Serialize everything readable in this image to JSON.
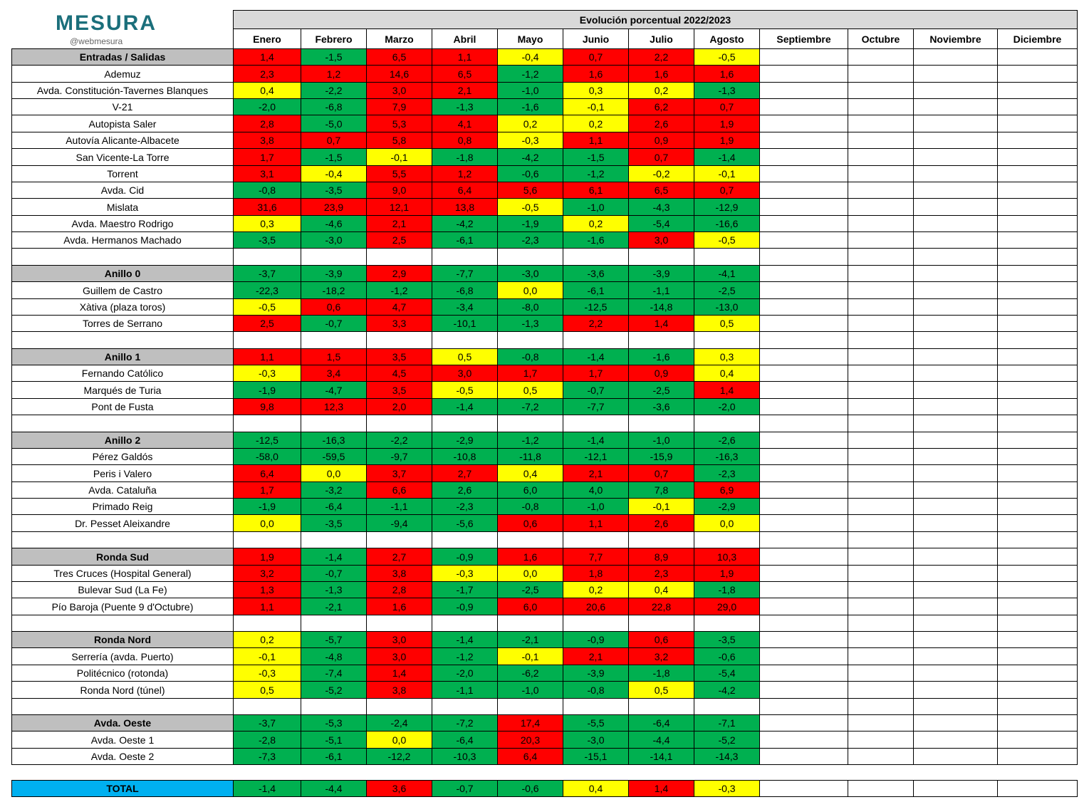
{
  "logo": {
    "name": "MESURA",
    "handle": "@webmesura"
  },
  "header": {
    "title": "Evolución porcentual 2022/2023",
    "months": [
      "Enero",
      "Febrero",
      "Marzo",
      "Abril",
      "Mayo",
      "Junio",
      "Julio",
      "Agosto",
      "Septiembre",
      "Octubre",
      "Noviembre",
      "Diciembre"
    ]
  },
  "palette": {
    "R": "#ff0000",
    "Y": "#ffff00",
    "G": "#00b050"
  },
  "groups": [
    {
      "name": "Entradas / Salidas",
      "values": [
        "1,4",
        "-1,5",
        "6,5",
        "1,1",
        "-0,4",
        "0,7",
        "2,2",
        "-0,5"
      ],
      "fills": "RGRRYRRY",
      "rows": [
        {
          "label": "Ademuz",
          "values": [
            "2,3",
            "1,2",
            "14,6",
            "6,5",
            "-1,2",
            "1,6",
            "1,6",
            "1,6"
          ],
          "fills": "RRRRGRRR"
        },
        {
          "label": "Avda. Constitución-Tavernes Blanques",
          "values": [
            "0,4",
            "-2,2",
            "3,0",
            "2,1",
            "-1,0",
            "0,3",
            "0,2",
            "-1,3"
          ],
          "fills": "YGRRGYYG"
        },
        {
          "label": "V-21",
          "values": [
            "-2,0",
            "-6,8",
            "7,9",
            "-1,3",
            "-1,6",
            "-0,1",
            "6,2",
            "0,7"
          ],
          "fills": "GGRGGYRR"
        },
        {
          "label": "Autopista Saler",
          "values": [
            "2,8",
            "-5,0",
            "5,3",
            "4,1",
            "0,2",
            "0,2",
            "2,6",
            "1,9"
          ],
          "fills": "RGRRYYRR"
        },
        {
          "label": "Autovía Alicante-Albacete",
          "values": [
            "3,8",
            "0,7",
            "5,8",
            "0,8",
            "-0,3",
            "1,1",
            "0,9",
            "1,9"
          ],
          "fills": "RRRRYRRR"
        },
        {
          "label": "San Vicente-La Torre",
          "values": [
            "1,7",
            "-1,5",
            "-0,1",
            "-1,8",
            "-4,2",
            "-1,5",
            "0,7",
            "-1,4"
          ],
          "fills": "RGYGGGRG"
        },
        {
          "label": "Torrent",
          "values": [
            "3,1",
            "-0,4",
            "5,5",
            "1,2",
            "-0,6",
            "-1,2",
            "-0,2",
            "-0,1"
          ],
          "fills": "RYRRGGYY"
        },
        {
          "label": "Avda. Cid",
          "values": [
            "-0,8",
            "-3,5",
            "9,0",
            "6,4",
            "5,6",
            "6,1",
            "6,5",
            "0,7"
          ],
          "fills": "GGRRRRRR"
        },
        {
          "label": "Mislata",
          "values": [
            "31,6",
            "23,9",
            "12,1",
            "13,8",
            "-0,5",
            "-1,0",
            "-4,3",
            "-12,9"
          ],
          "fills": "RRRRYGGG"
        },
        {
          "label": "Avda. Maestro Rodrigo",
          "values": [
            "0,3",
            "-4,6",
            "2,1",
            "-4,2",
            "-1,9",
            "0,2",
            "-5,4",
            "-16,6"
          ],
          "fills": "YGRGGYGG"
        },
        {
          "label": "Avda. Hermanos Machado",
          "values": [
            "-3,5",
            "-3,0",
            "2,5",
            "-6,1",
            "-2,3",
            "-1,6",
            "3,0",
            "-0,5"
          ],
          "fills": "GGRGGGRY"
        }
      ]
    },
    {
      "name": "Anillo 0",
      "values": [
        "-3,7",
        "-3,9",
        "2,9",
        "-7,7",
        "-3,0",
        "-3,6",
        "-3,9",
        "-4,1"
      ],
      "fills": "GGRGGGGG",
      "rows": [
        {
          "label": "Guillem de Castro",
          "values": [
            "-22,3",
            "-18,2",
            "-1,2",
            "-6,8",
            "0,0",
            "-6,1",
            "-1,1",
            "-2,5"
          ],
          "fills": "GGGGYGGG"
        },
        {
          "label": "Xàtiva (plaza toros)",
          "values": [
            "-0,5",
            "0,6",
            "4,7",
            "-3,4",
            "-8,0",
            "-12,5",
            "-14,8",
            "-13,0"
          ],
          "fills": "YRRGGGGG"
        },
        {
          "label": "Torres de Serrano",
          "values": [
            "2,5",
            "-0,7",
            "3,3",
            "-10,1",
            "-1,3",
            "2,2",
            "1,4",
            "0,5"
          ],
          "fills": "RGRGGRRY"
        }
      ]
    },
    {
      "name": "Anillo 1",
      "values": [
        "1,1",
        "1,5",
        "3,5",
        "0,5",
        "-0,8",
        "-1,4",
        "-1,6",
        "0,3"
      ],
      "fills": "RRRYGGGY",
      "rows": [
        {
          "label": "Fernando Católico",
          "values": [
            "-0,3",
            "3,4",
            "4,5",
            "3,0",
            "1,7",
            "1,7",
            "0,9",
            "0,4"
          ],
          "fills": "YRRRRRRY"
        },
        {
          "label": "Marqués de Turia",
          "values": [
            "-1,9",
            "-4,7",
            "3,5",
            "-0,5",
            "0,5",
            "-0,7",
            "-2,5",
            "1,4"
          ],
          "fills": "GGRYYGGR"
        },
        {
          "label": "Pont de Fusta",
          "values": [
            "9,8",
            "12,3",
            "2,0",
            "-1,4",
            "-7,2",
            "-7,7",
            "-3,6",
            "-2,0"
          ],
          "fills": "RRRGGGGG"
        }
      ]
    },
    {
      "name": "Anillo 2",
      "values": [
        "-12,5",
        "-16,3",
        "-2,2",
        "-2,9",
        "-1,2",
        "-1,4",
        "-1,0",
        "-2,6"
      ],
      "fills": "GGGGGGGG",
      "rows": [
        {
          "label": "Pérez Galdós",
          "values": [
            "-58,0",
            "-59,5",
            "-9,7",
            "-10,8",
            "-11,8",
            "-12,1",
            "-15,9",
            "-16,3"
          ],
          "fills": "GGGGGGGG"
        },
        {
          "label": "Peris i Valero",
          "values": [
            "6,4",
            "0,0",
            "3,7",
            "2,7",
            "0,4",
            "2,1",
            "0,7",
            "-2,3"
          ],
          "fills": "RYRRYRRG"
        },
        {
          "label": "Avda. Cataluña",
          "values": [
            "1,7",
            "-3,2",
            "6,6",
            "2,6",
            "6,0",
            "4,0",
            "7,8",
            "6,9"
          ],
          "fills": "RGRGGGGR"
        },
        {
          "label": "Primado Reig",
          "values": [
            "-1,9",
            "-6,4",
            "-1,1",
            "-2,3",
            "-0,8",
            "-1,0",
            "-0,1",
            "-2,9"
          ],
          "fills": "GGGGGGYG"
        },
        {
          "label": "Dr. Pesset Aleixandre",
          "values": [
            "0,0",
            "-3,5",
            "-9,4",
            "-5,6",
            "0,6",
            "1,1",
            "2,6",
            "0,0"
          ],
          "fills": "YGGGRRRY"
        }
      ]
    },
    {
      "name": "Ronda Sud",
      "values": [
        "1,9",
        "-1,4",
        "2,7",
        "-0,9",
        "1,6",
        "7,7",
        "8,9",
        "10,3"
      ],
      "fills": "RGRGRRRR",
      "rows": [
        {
          "label": "Tres Cruces (Hospital General)",
          "values": [
            "3,2",
            "-0,7",
            "3,8",
            "-0,3",
            "0,0",
            "1,8",
            "2,3",
            "1,9"
          ],
          "fills": "RGRYYRRR"
        },
        {
          "label": "Bulevar Sud (La Fe)",
          "values": [
            "1,3",
            "-1,3",
            "2,8",
            "-1,7",
            "-2,5",
            "0,2",
            "0,4",
            "-1,8"
          ],
          "fills": "RGRGGYYG"
        },
        {
          "label": "Pío Baroja (Puente 9 d'Octubre)",
          "values": [
            "1,1",
            "-2,1",
            "1,6",
            "-0,9",
            "6,0",
            "20,6",
            "22,8",
            "29,0"
          ],
          "fills": "RGRGRRRR"
        }
      ]
    },
    {
      "name": "Ronda Nord",
      "values": [
        "0,2",
        "-5,7",
        "3,0",
        "-1,4",
        "-2,1",
        "-0,9",
        "0,6",
        "-3,5"
      ],
      "fills": "YGRGGGRG",
      "rows": [
        {
          "label": "Serrería (avda. Puerto)",
          "values": [
            "-0,1",
            "-4,8",
            "3,0",
            "-1,2",
            "-0,1",
            "2,1",
            "3,2",
            "-0,6"
          ],
          "fills": "YGRGYRRG"
        },
        {
          "label": "Politécnico (rotonda)",
          "values": [
            "-0,3",
            "-7,4",
            "1,4",
            "-2,0",
            "-6,2",
            "-3,9",
            "-1,8",
            "-5,4"
          ],
          "fills": "YGRGGGGG"
        },
        {
          "label": "Ronda Nord (túnel)",
          "values": [
            "0,5",
            "-5,2",
            "3,8",
            "-1,1",
            "-1,0",
            "-0,8",
            "0,5",
            "-4,2"
          ],
          "fills": "YGRGGGYG"
        }
      ]
    },
    {
      "name": "Avda. Oeste",
      "values": [
        "-3,7",
        "-5,3",
        "-2,4",
        "-7,2",
        "17,4",
        "-5,5",
        "-6,4",
        "-7,1"
      ],
      "fills": "GGGGRGGG",
      "rows": [
        {
          "label": "Avda. Oeste 1",
          "values": [
            "-2,8",
            "-5,1",
            "0,0",
            "-6,4",
            "20,3",
            "-3,0",
            "-4,4",
            "-5,2"
          ],
          "fills": "GGYGRGGG"
        },
        {
          "label": "Avda. Oeste 2",
          "values": [
            "-7,3",
            "-6,1",
            "-12,2",
            "-10,3",
            "6,4",
            "-15,1",
            "-14,1",
            "-14,3"
          ],
          "fills": "GGGGRGGG"
        }
      ]
    }
  ],
  "total": {
    "label": "TOTAL",
    "values": [
      "-1,4",
      "-4,4",
      "3,6",
      "-0,7",
      "-0,6",
      "0,4",
      "1,4",
      "-0,3"
    ],
    "fills": "GGRGGYRY"
  }
}
